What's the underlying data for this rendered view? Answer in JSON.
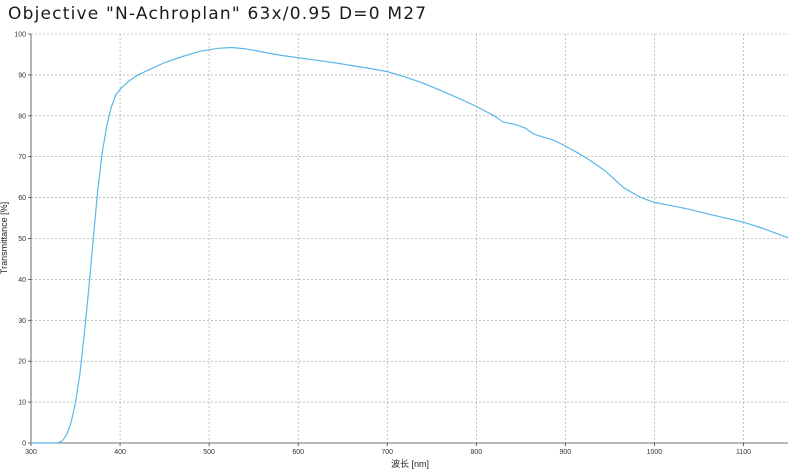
{
  "chart_data": {
    "type": "line",
    "title": "Objective \"N-Achroplan\" 63x/0.95 D=0 M27",
    "xlabel": "波长 [nm]",
    "ylabel": "Transmittance [%]",
    "xlim": [
      300,
      1150
    ],
    "ylim": [
      0,
      100
    ],
    "xticks": [
      300,
      400,
      500,
      600,
      700,
      800,
      900,
      1000,
      1100
    ],
    "yticks": [
      0,
      10,
      20,
      30,
      40,
      50,
      60,
      70,
      80,
      90,
      100
    ],
    "grid": true,
    "series": [
      {
        "color": "#5bb8e8",
        "x": [
          300,
          330,
          335,
          340,
          345,
          350,
          355,
          360,
          365,
          370,
          375,
          380,
          385,
          390,
          395,
          400,
          410,
          420,
          430,
          450,
          470,
          490,
          510,
          525,
          540,
          560,
          580,
          600,
          620,
          640,
          660,
          680,
          700,
          720,
          740,
          760,
          780,
          800,
          820,
          830,
          845,
          855,
          865,
          875,
          885,
          895,
          905,
          915,
          925,
          935,
          945,
          955,
          965,
          975,
          985,
          1000,
          1020,
          1040,
          1060,
          1080,
          1100,
          1120,
          1140,
          1150
        ],
        "y": [
          0,
          0,
          0.5,
          2,
          5,
          10,
          17,
          27,
          38,
          50,
          62,
          71,
          77.5,
          82,
          85,
          86.5,
          88.5,
          90,
          91,
          93,
          94.5,
          95.8,
          96.5,
          96.7,
          96.4,
          95.6,
          94.8,
          94.2,
          93.6,
          93,
          92.3,
          91.6,
          90.8,
          89.5,
          88,
          86.2,
          84.3,
          82.3,
          80,
          78.5,
          77.8,
          77,
          75.5,
          74.8,
          74.2,
          73.2,
          72,
          70.8,
          69.5,
          68,
          66.5,
          64.5,
          62.5,
          61.2,
          60,
          58.8,
          58,
          57.1,
          56,
          55,
          54,
          52.6,
          51,
          50.2
        ]
      }
    ]
  }
}
